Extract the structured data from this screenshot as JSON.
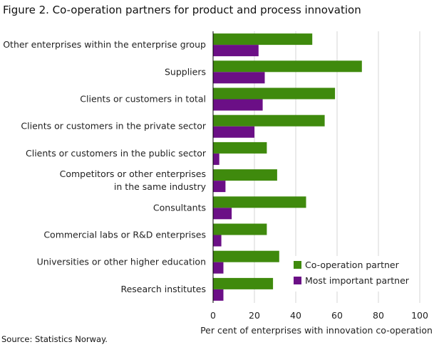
{
  "title": "Figure 2. Co-operation partners for product and process innovation",
  "source": "Source: Statistics Norway.",
  "chart_data": {
    "type": "bar",
    "orientation": "horizontal",
    "categories": [
      [
        "Other enterprises within the enterprise group"
      ],
      [
        "Suppliers"
      ],
      [
        "Clients or customers in total"
      ],
      [
        "Clients or customers in the private sector"
      ],
      [
        "Clients or customers in the public sector"
      ],
      [
        "Competitors or other enterprises",
        "in the same industry"
      ],
      [
        "Consultants"
      ],
      [
        "Commercial labs or R&D enterprises"
      ],
      [
        "Universities or other higher education"
      ],
      [
        "Research institutes"
      ]
    ],
    "series": [
      {
        "name": "Co-operation partner",
        "color": "#3f8a0d",
        "values": [
          48,
          72,
          59,
          54,
          26,
          31,
          45,
          26,
          32,
          29
        ]
      },
      {
        "name": "Most important partner",
        "color": "#6b0f86",
        "values": [
          22,
          25,
          24,
          20,
          3,
          6,
          9,
          4,
          5,
          5
        ]
      }
    ],
    "xlim": [
      0,
      100
    ],
    "xticks": [
      0,
      20,
      40,
      60,
      80,
      100
    ],
    "xlabel": "Per cent  of enterprises  with innovation co-operation",
    "grid": true,
    "legend_position": "bottom-right"
  }
}
